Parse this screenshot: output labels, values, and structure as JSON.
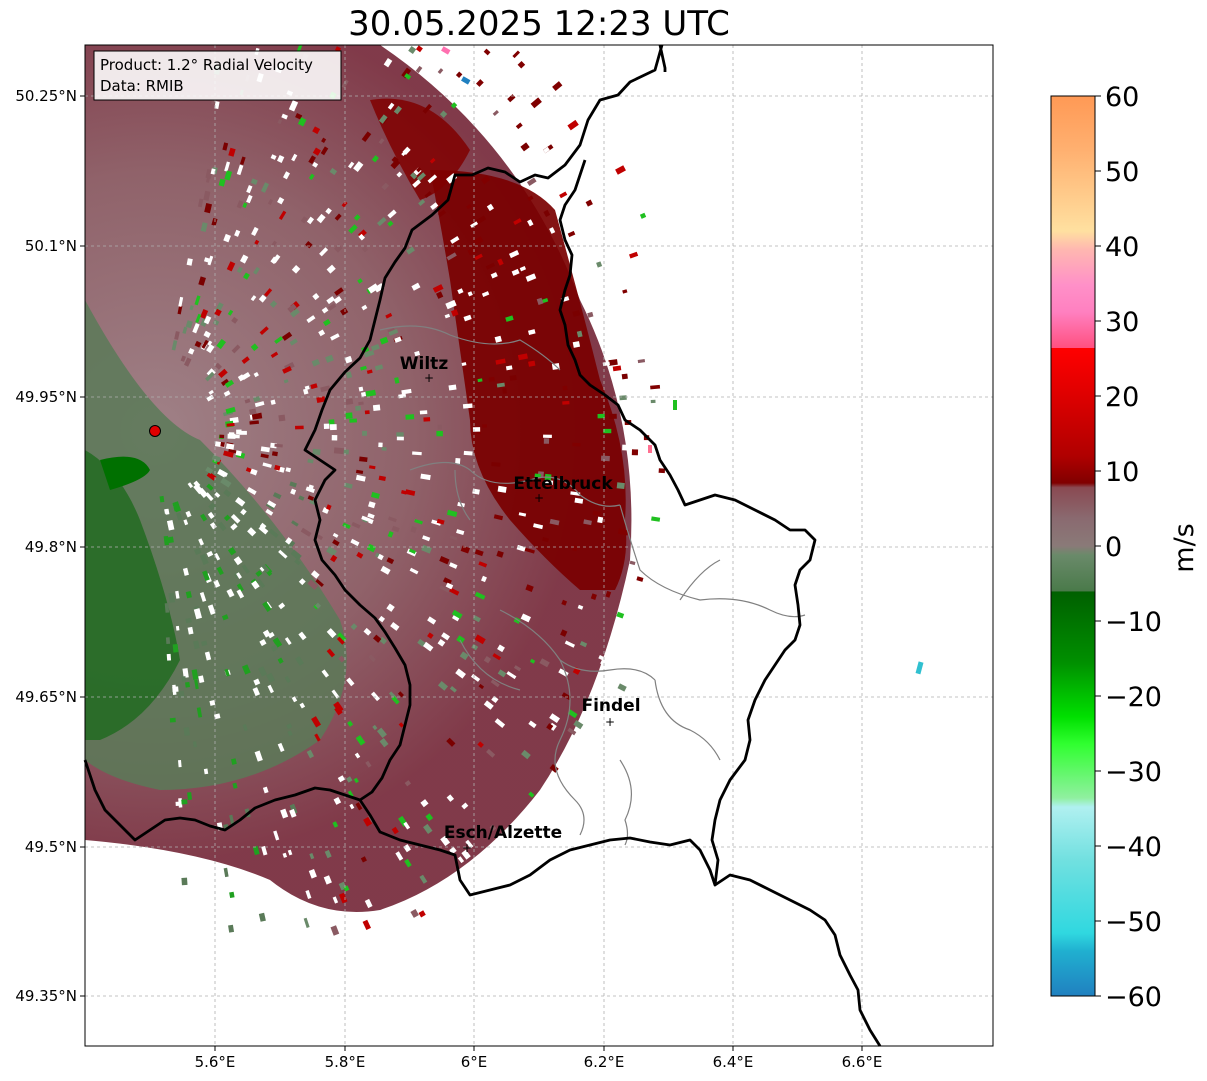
{
  "title": "30.05.2025 12:23 UTC",
  "info_box": {
    "product": "Product: 1.2° Radial Velocity",
    "data": "Data: RMIB"
  },
  "lat_ticks": [
    "50.25°N",
    "50.1°N",
    "49.95°N",
    "49.8°N",
    "49.65°N",
    "49.5°N",
    "49.35°N"
  ],
  "lon_ticks": [
    "5.6°E",
    "5.8°E",
    "6°E",
    "6.2°E",
    "6.4°E",
    "6.6°E"
  ],
  "cities": [
    {
      "name": "Wiltz",
      "lon": 5.935,
      "lat": 49.966
    },
    {
      "name": "Ettelbruck",
      "lon": 6.104,
      "lat": 49.848
    },
    {
      "name": "Findel",
      "lon": 6.211,
      "lat": 49.626
    },
    {
      "name": "Esch/Alzette",
      "lon": 5.981,
      "lat": 49.496
    }
  ],
  "radar_site": {
    "lon": 5.505,
    "lat": 49.914,
    "color": "#e00000"
  },
  "colorbar": {
    "label": "m/s",
    "tick_labels": [
      "60",
      "50",
      "40",
      "30",
      "20",
      "10",
      "0",
      "−10",
      "−20",
      "−30",
      "−40",
      "−50",
      "−60"
    ],
    "range": [
      -60,
      60
    ],
    "colors": {
      "orange": "#ff9955",
      "pink": "#ff80c0",
      "red": "#ff0000",
      "darkred": "#800000",
      "brown_gray": "#8a6a70",
      "gray_green": "#6a8a6a",
      "green": "#008000",
      "bright_green": "#00e000",
      "light_cyan": "#b0f0f0",
      "cyan": "#30d8e0",
      "blue": "#2080c0"
    }
  }
}
